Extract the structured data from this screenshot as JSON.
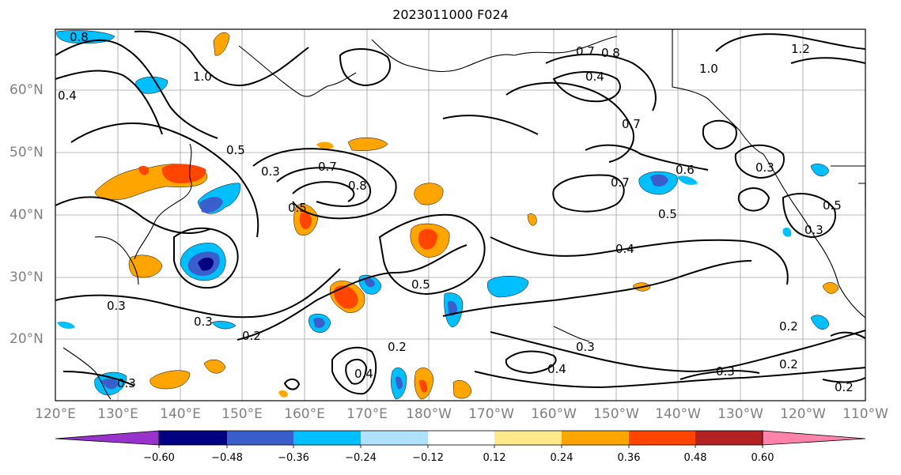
{
  "title": "2023011000 F024",
  "map": {
    "longitude_labels": [
      "120°E",
      "130°E",
      "140°E",
      "150°E",
      "160°E",
      "170°E",
      "180°W",
      "170°W",
      "160°W",
      "150°W",
      "140°W",
      "130°W",
      "120°W",
      "110°W"
    ],
    "latitude_labels": [
      "60°N",
      "50°N",
      "40°N",
      "30°N",
      "20°N"
    ],
    "contour_labels": [
      "0.8",
      "1.0",
      "1.2",
      "0.4",
      "0.3",
      "0.5",
      "0.7",
      "0.6",
      "0.2"
    ],
    "colors": {
      "land_outline": "#000000",
      "grid": "#a0a0a0",
      "contour": "#000000"
    }
  },
  "colorbar": {
    "tick_labels": [
      "−0.60",
      "−0.48",
      "−0.36",
      "−0.24",
      "−0.12",
      "0.12",
      "0.24",
      "0.36",
      "0.48",
      "0.60"
    ],
    "bins": [
      {
        "color": "#9932cc"
      },
      {
        "color": "#000080"
      },
      {
        "color": "#3a5fcd"
      },
      {
        "color": "#00bfff"
      },
      {
        "color": "#b0e2ff"
      },
      {
        "color": "#ffffff"
      },
      {
        "color": "#ffe98a"
      },
      {
        "color": "#ffa500"
      },
      {
        "color": "#ff4500"
      },
      {
        "color": "#b22222"
      },
      {
        "color": "#ff82ab"
      }
    ]
  }
}
